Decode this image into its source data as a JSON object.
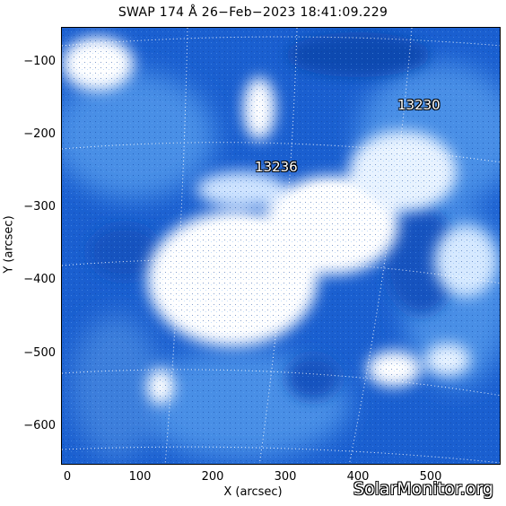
{
  "title": "SWAP 174 Å 26−Feb−2023 18:41:09.229",
  "x_axis": {
    "label": "X (arcsec)",
    "ticks": [
      "0",
      "100",
      "200",
      "300",
      "400",
      "500"
    ]
  },
  "y_axis": {
    "label": "Y (arcsec)",
    "ticks": [
      "−100",
      "−200",
      "−300",
      "−400",
      "−500",
      "−600"
    ]
  },
  "active_regions": [
    {
      "label": "13230"
    },
    {
      "label": "13236"
    }
  ],
  "watermark": "SolarMonitor.org",
  "colors": {
    "background_blue": "#1a5fd0",
    "bright": "#ffffff",
    "mid_blue": "#5aa0ec"
  }
}
